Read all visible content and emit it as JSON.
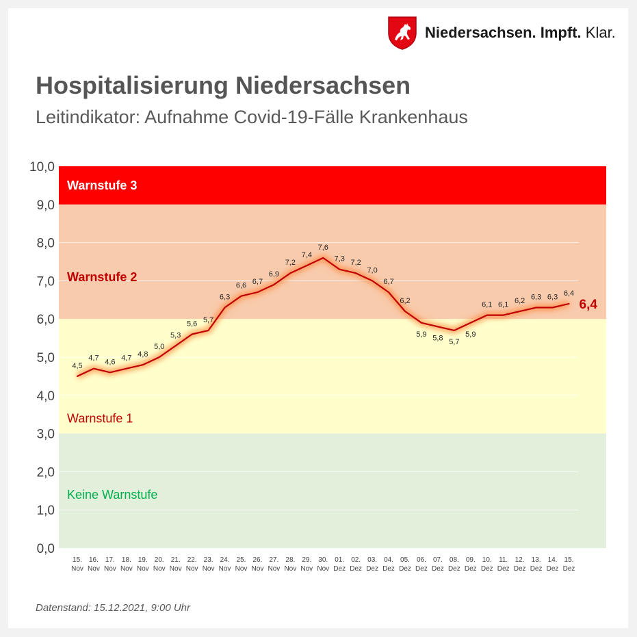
{
  "logo": {
    "icon": "lower-saxony-horse-coat-of-arms-icon",
    "brand_bold": "Niedersachsen. Impft.",
    "brand_light": "Klar."
  },
  "header": {
    "title": "Hospitalisierung Niedersachsen",
    "subtitle": "Leitindikator: Aufnahme Covid-19-Fälle Krankenhaus"
  },
  "footnote": "Datenstand: 15.12.2021, 9:00 Uhr",
  "chart_data": {
    "type": "line",
    "title": "Hospitalisierung Niedersachsen",
    "subtitle": "Leitindikator: Aufnahme Covid-19-Fälle Krankenhaus",
    "ylim": [
      0,
      10
    ],
    "y_ticks": [
      "0,0",
      "1,0",
      "2,0",
      "3,0",
      "4,0",
      "5,0",
      "6,0",
      "7,0",
      "8,0",
      "9,0",
      "10,0"
    ],
    "x": [
      [
        "15.",
        "Nov"
      ],
      [
        "16.",
        "Nov"
      ],
      [
        "17.",
        "Nov"
      ],
      [
        "18.",
        "Nov"
      ],
      [
        "19.",
        "Nov"
      ],
      [
        "20.",
        "Nov"
      ],
      [
        "21.",
        "Nov"
      ],
      [
        "22.",
        "Nov"
      ],
      [
        "23.",
        "Nov"
      ],
      [
        "24.",
        "Nov"
      ],
      [
        "25.",
        "Nov"
      ],
      [
        "26.",
        "Nov"
      ],
      [
        "27.",
        "Nov"
      ],
      [
        "28.",
        "Nov"
      ],
      [
        "29.",
        "Nov"
      ],
      [
        "30.",
        "Nov"
      ],
      [
        "01.",
        "Dez"
      ],
      [
        "02.",
        "Dez"
      ],
      [
        "03.",
        "Dez"
      ],
      [
        "04.",
        "Dez"
      ],
      [
        "05.",
        "Dez"
      ],
      [
        "06.",
        "Dez"
      ],
      [
        "07.",
        "Dez"
      ],
      [
        "08.",
        "Dez"
      ],
      [
        "09.",
        "Dez"
      ],
      [
        "10.",
        "Dez"
      ],
      [
        "11.",
        "Dez"
      ],
      [
        "12.",
        "Dez"
      ],
      [
        "13.",
        "Dez"
      ],
      [
        "14.",
        "Dez"
      ],
      [
        "15.",
        "Dez"
      ]
    ],
    "values": [
      4.5,
      4.7,
      4.6,
      4.7,
      4.8,
      5.0,
      5.3,
      5.6,
      5.7,
      6.3,
      6.6,
      6.7,
      6.9,
      7.2,
      7.4,
      7.6,
      7.3,
      7.2,
      7.0,
      6.7,
      6.2,
      5.9,
      5.8,
      5.7,
      5.9,
      6.1,
      6.1,
      6.2,
      6.3,
      6.3,
      6.4
    ],
    "value_labels": [
      "4,5",
      "4,7",
      "4,6",
      "4,7",
      "4,8",
      "5,0",
      "5,3",
      "5,6",
      "5,7",
      "6,3",
      "6,6",
      "6,7",
      "6,9",
      "7,2",
      "7,4",
      "7,6",
      "7,3",
      "7,2",
      "7,0",
      "6,7",
      "6,2",
      "5,9",
      "5,8",
      "5,7",
      "5,9",
      "6,1",
      "6,1",
      "6,2",
      "6,3",
      "6,3",
      "6,4"
    ],
    "latest_label": "6,4",
    "line_color": "#c00000",
    "grid": true,
    "bands": [
      {
        "from": 0,
        "to": 3,
        "label": "Keine Warnstufe",
        "fill": "#e2efda",
        "label_color": "#00b050",
        "label_bold": false
      },
      {
        "from": 3,
        "to": 6,
        "label": "Warnstufe 1",
        "fill": "#ffffcc",
        "label_color": "#c00000",
        "label_bold": false
      },
      {
        "from": 6,
        "to": 9,
        "label": "Warnstufe 2",
        "fill": "#f8cbad",
        "label_color": "#c00000",
        "label_bold": true
      },
      {
        "from": 9,
        "to": 10,
        "label": "Warnstufe 3",
        "fill": "#ff0000",
        "label_color": "#ffffff",
        "label_bold": true
      }
    ]
  }
}
